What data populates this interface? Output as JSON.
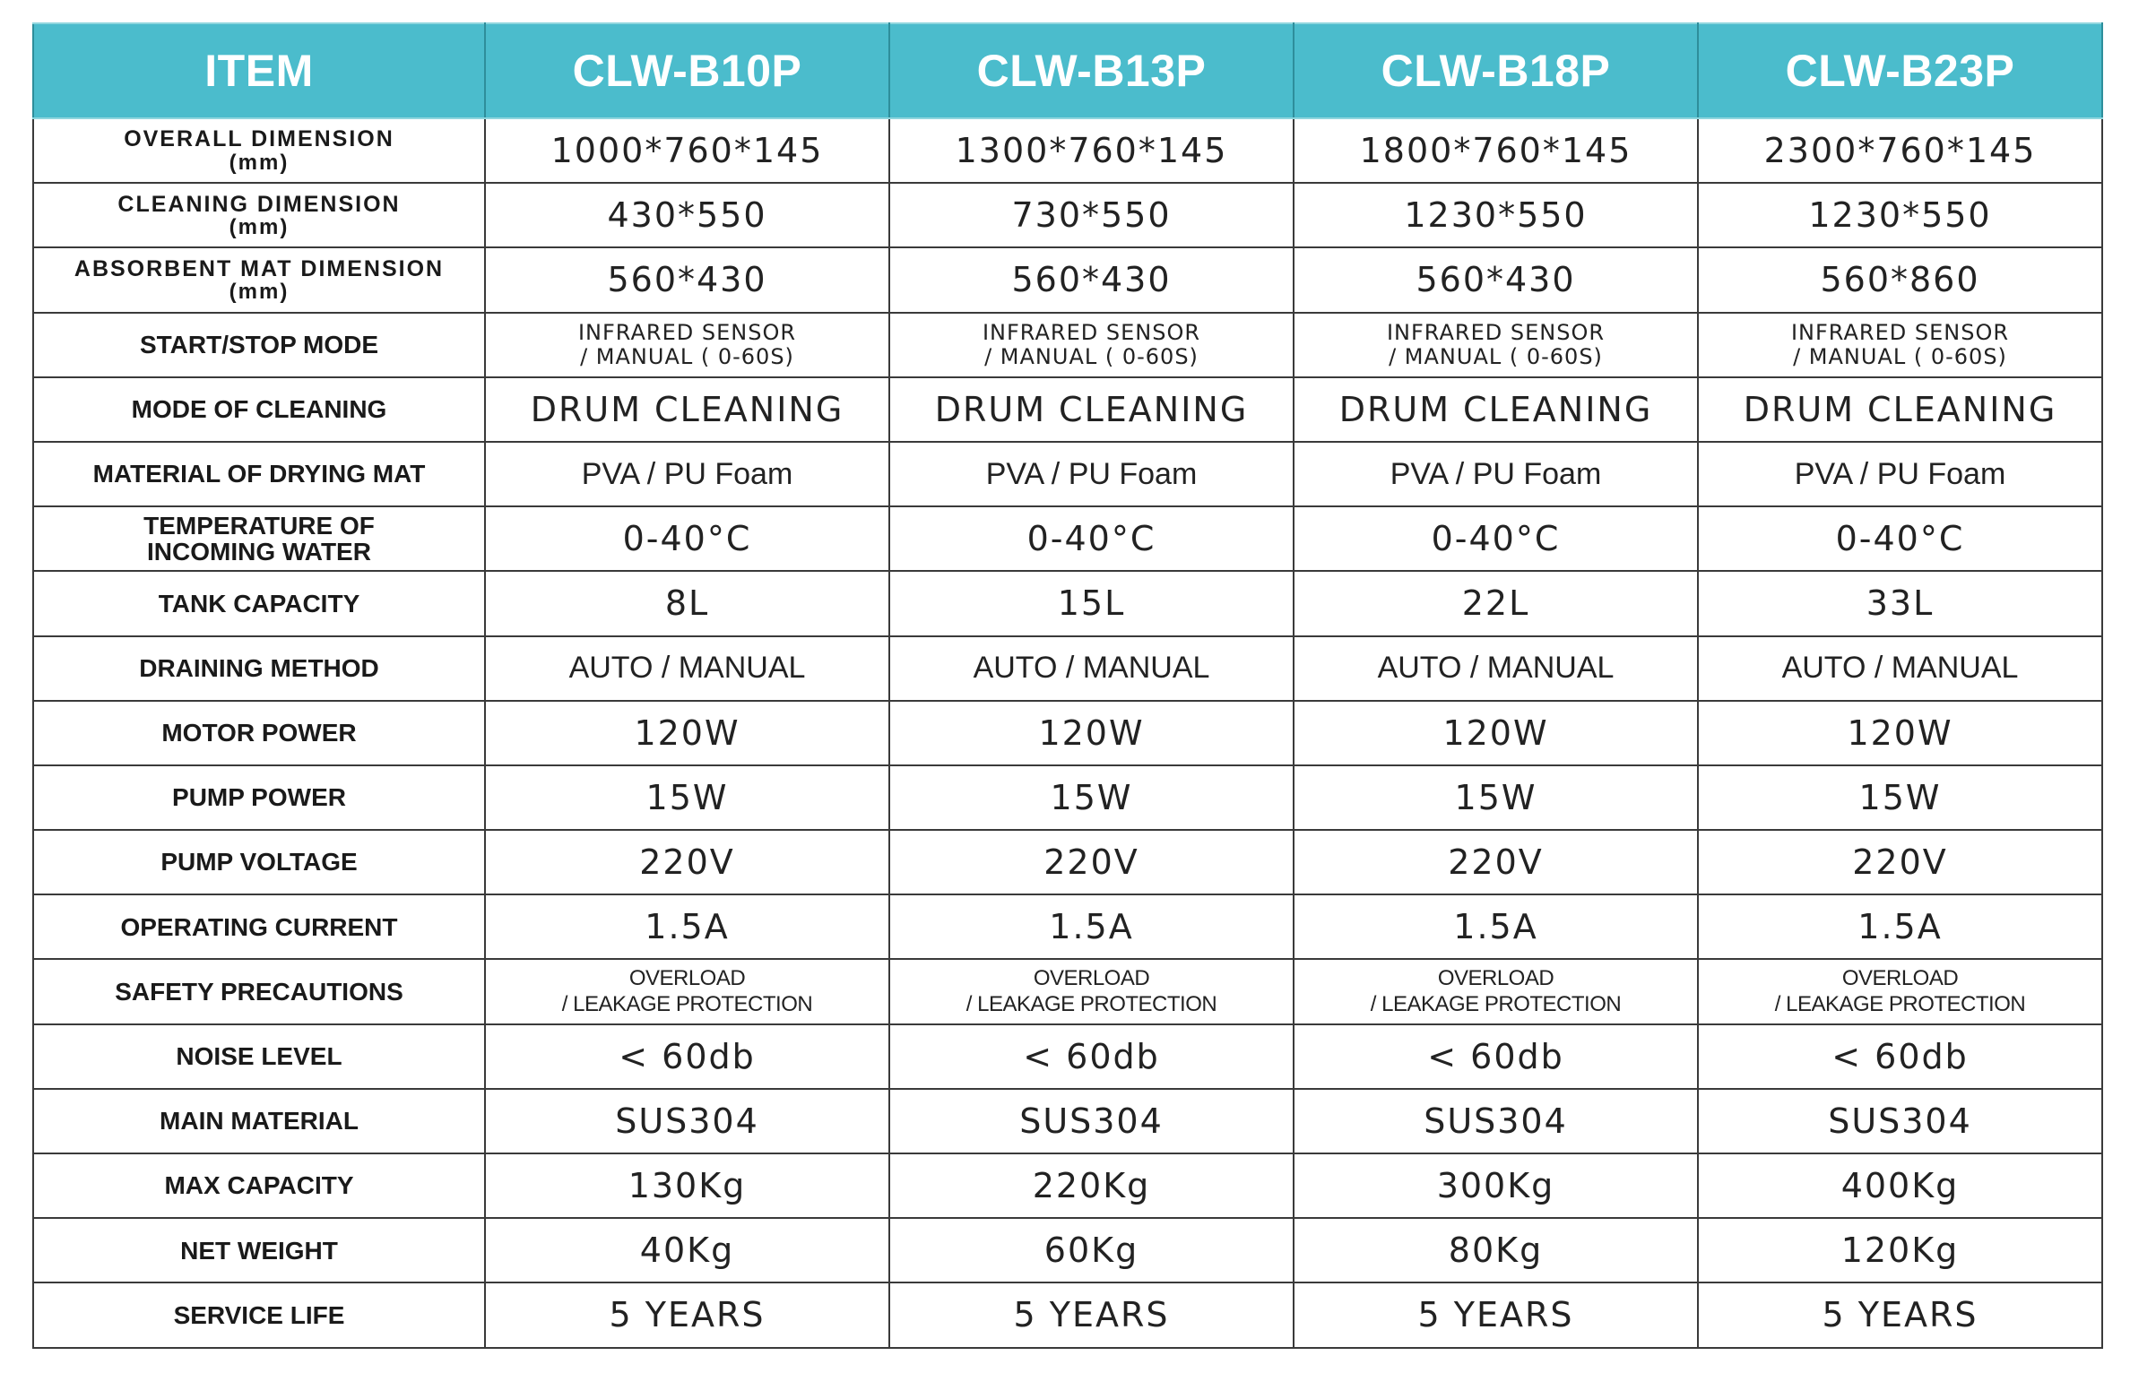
{
  "table": {
    "header": {
      "item": "ITEM",
      "models": [
        "CLW-B10P",
        "CLW-B13P",
        "CLW-B18P",
        "CLW-B23P"
      ]
    },
    "rows": [
      {
        "label": "OVERALL DIMENSION",
        "label_sub": "(mm)",
        "values": [
          "1000*760*145",
          "1300*760*145",
          "1800*760*145",
          "2300*760*145"
        ]
      },
      {
        "label": "CLEANING DIMENSION",
        "label_sub": "(mm)",
        "values": [
          "430*550",
          "730*550",
          "1230*550",
          "1230*550"
        ]
      },
      {
        "label": "ABSORBENT MAT DIMENSION",
        "label_sub": "(mm)",
        "values": [
          "560*430",
          "560*430",
          "560*430",
          "560*860"
        ]
      },
      {
        "label": "START/STOP MODE",
        "values": [
          {
            "line1": "INFRARED SENSOR",
            "line2": "/ MANUAL ( 0-60S)"
          },
          {
            "line1": "INFRARED SENSOR",
            "line2": "/ MANUAL ( 0-60S)"
          },
          {
            "line1": "INFRARED SENSOR",
            "line2": "/ MANUAL ( 0-60S)"
          },
          {
            "line1": "INFRARED SENSOR",
            "line2": "/ MANUAL ( 0-60S)"
          }
        ]
      },
      {
        "label": "MODE OF CLEANING",
        "values": [
          "DRUM CLEANING",
          "DRUM CLEANING",
          "DRUM CLEANING",
          "DRUM CLEANING"
        ]
      },
      {
        "label": "MATERIAL OF DRYING MAT",
        "values": [
          "PVA / PU Foam",
          "PVA / PU Foam",
          "PVA / PU Foam",
          "PVA / PU Foam"
        ]
      },
      {
        "label": "TEMPERATURE OF",
        "label_line2": "INCOMING WATER",
        "values": [
          "0-40°C",
          "0-40°C",
          "0-40°C",
          "0-40°C"
        ]
      },
      {
        "label": "TANK CAPACITY",
        "values": [
          "8L",
          "15L",
          "22L",
          "33L"
        ]
      },
      {
        "label": "DRAINING METHOD",
        "values": [
          "AUTO / MANUAL",
          "AUTO / MANUAL",
          "AUTO / MANUAL",
          "AUTO / MANUAL"
        ]
      },
      {
        "label": "MOTOR POWER",
        "values": [
          "120W",
          "120W",
          "120W",
          "120W"
        ]
      },
      {
        "label": "PUMP POWER",
        "values": [
          "15W",
          "15W",
          "15W",
          "15W"
        ]
      },
      {
        "label": "PUMP VOLTAGE",
        "values": [
          "220V",
          "220V",
          "220V",
          "220V"
        ]
      },
      {
        "label": "OPERATING CURRENT",
        "values": [
          "1.5A",
          "1.5A",
          "1.5A",
          "1.5A"
        ]
      },
      {
        "label": "SAFETY PRECAUTIONS",
        "values": [
          {
            "line1": "OVERLOAD",
            "line2": "/ LEAKAGE PROTECTION"
          },
          {
            "line1": "OVERLOAD",
            "line2": "/ LEAKAGE PROTECTION"
          },
          {
            "line1": "OVERLOAD",
            "line2": "/ LEAKAGE PROTECTION"
          },
          {
            "line1": "OVERLOAD",
            "line2": "/ LEAKAGE PROTECTION"
          }
        ]
      },
      {
        "label": "NOISE LEVEL",
        "values": [
          "< 60db",
          "< 60db",
          "< 60db",
          "< 60db"
        ]
      },
      {
        "label": "MAIN MATERIAL",
        "values": [
          "SUS304",
          "SUS304",
          "SUS304",
          "SUS304"
        ]
      },
      {
        "label": "MAX CAPACITY",
        "values": [
          "130Kg",
          "220Kg",
          "300Kg",
          "400Kg"
        ]
      },
      {
        "label": "NET WEIGHT",
        "values": [
          "40Kg",
          "60Kg",
          "80Kg",
          "120Kg"
        ]
      },
      {
        "label": "SERVICE LIFE",
        "values": [
          "5 YEARS",
          "5 YEARS",
          "5 YEARS",
          "5 YEARS"
        ]
      }
    ]
  }
}
